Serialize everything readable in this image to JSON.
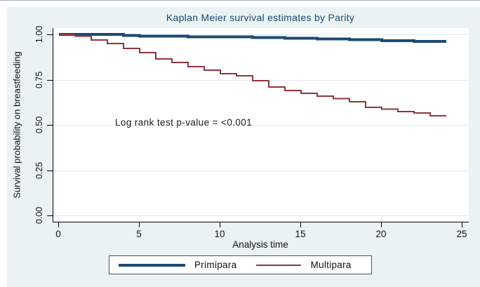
{
  "title": "Kaplan Meier survival estimates by Parity",
  "annotation": "Log rank test p-value = <0.001",
  "axes": {
    "x": {
      "label": "Analysis time",
      "ticks": [
        "0",
        "5",
        "10",
        "15",
        "20",
        "25"
      ]
    },
    "y": {
      "label": "Survival probability on breastfeeding",
      "ticks": [
        "1.00",
        "0.75",
        "0.50",
        "0.25",
        "0.00"
      ]
    }
  },
  "legend": {
    "items": [
      {
        "label": "Primipara",
        "color": "#1c4a73",
        "line_width": 4
      },
      {
        "label": "Multipara",
        "color": "#90353b",
        "line_width": 2
      }
    ]
  },
  "colors": {
    "navy": "#1c4a73",
    "maroon": "#90353b",
    "canvas_background": "#eaf2f3",
    "plot_background": "#ffffff",
    "gridline": "#dfe8ee",
    "axis": "#000000",
    "title_text": "#1a476f"
  },
  "chart_data": {
    "type": "line",
    "subtype": "kaplan-meier-step",
    "title": "Kaplan Meier survival estimates by Parity",
    "xlabel": "Analysis time",
    "ylabel": "Survival probability on breastfeeding",
    "xlim": [
      0,
      25
    ],
    "ylim": [
      0,
      1
    ],
    "x_ticks": [
      0,
      5,
      10,
      15,
      20,
      25
    ],
    "y_ticks": [
      0.0,
      0.25,
      0.5,
      0.75,
      1.0
    ],
    "grid": "horizontal",
    "legend_position": "bottom",
    "annotation": "Log rank test p-value = <0.001",
    "series": [
      {
        "name": "Primipara",
        "color": "#1c4a73",
        "line_width": 4,
        "step": true,
        "points": [
          [
            0,
            1.0
          ],
          [
            4,
            0.995
          ],
          [
            5,
            0.991
          ],
          [
            8,
            0.987
          ],
          [
            12,
            0.982
          ],
          [
            14,
            0.978
          ],
          [
            16,
            0.974
          ],
          [
            18,
            0.97
          ],
          [
            20,
            0.966
          ],
          [
            22,
            0.962
          ],
          [
            24,
            0.962
          ]
        ]
      },
      {
        "name": "Multipara",
        "color": "#90353b",
        "line_width": 2,
        "step": true,
        "points": [
          [
            0,
            1.0
          ],
          [
            1,
            0.99
          ],
          [
            2,
            0.969
          ],
          [
            3,
            0.95
          ],
          [
            4,
            0.922
          ],
          [
            5,
            0.899
          ],
          [
            6,
            0.864
          ],
          [
            7,
            0.845
          ],
          [
            8,
            0.822
          ],
          [
            9,
            0.802
          ],
          [
            10,
            0.783
          ],
          [
            11,
            0.771
          ],
          [
            12,
            0.744
          ],
          [
            13,
            0.709
          ],
          [
            14,
            0.69
          ],
          [
            15,
            0.674
          ],
          [
            16,
            0.658
          ],
          [
            17,
            0.645
          ],
          [
            18,
            0.627
          ],
          [
            19,
            0.597
          ],
          [
            20,
            0.588
          ],
          [
            21,
            0.573
          ],
          [
            22,
            0.565
          ],
          [
            23,
            0.55
          ],
          [
            24,
            0.55
          ]
        ]
      }
    ]
  }
}
